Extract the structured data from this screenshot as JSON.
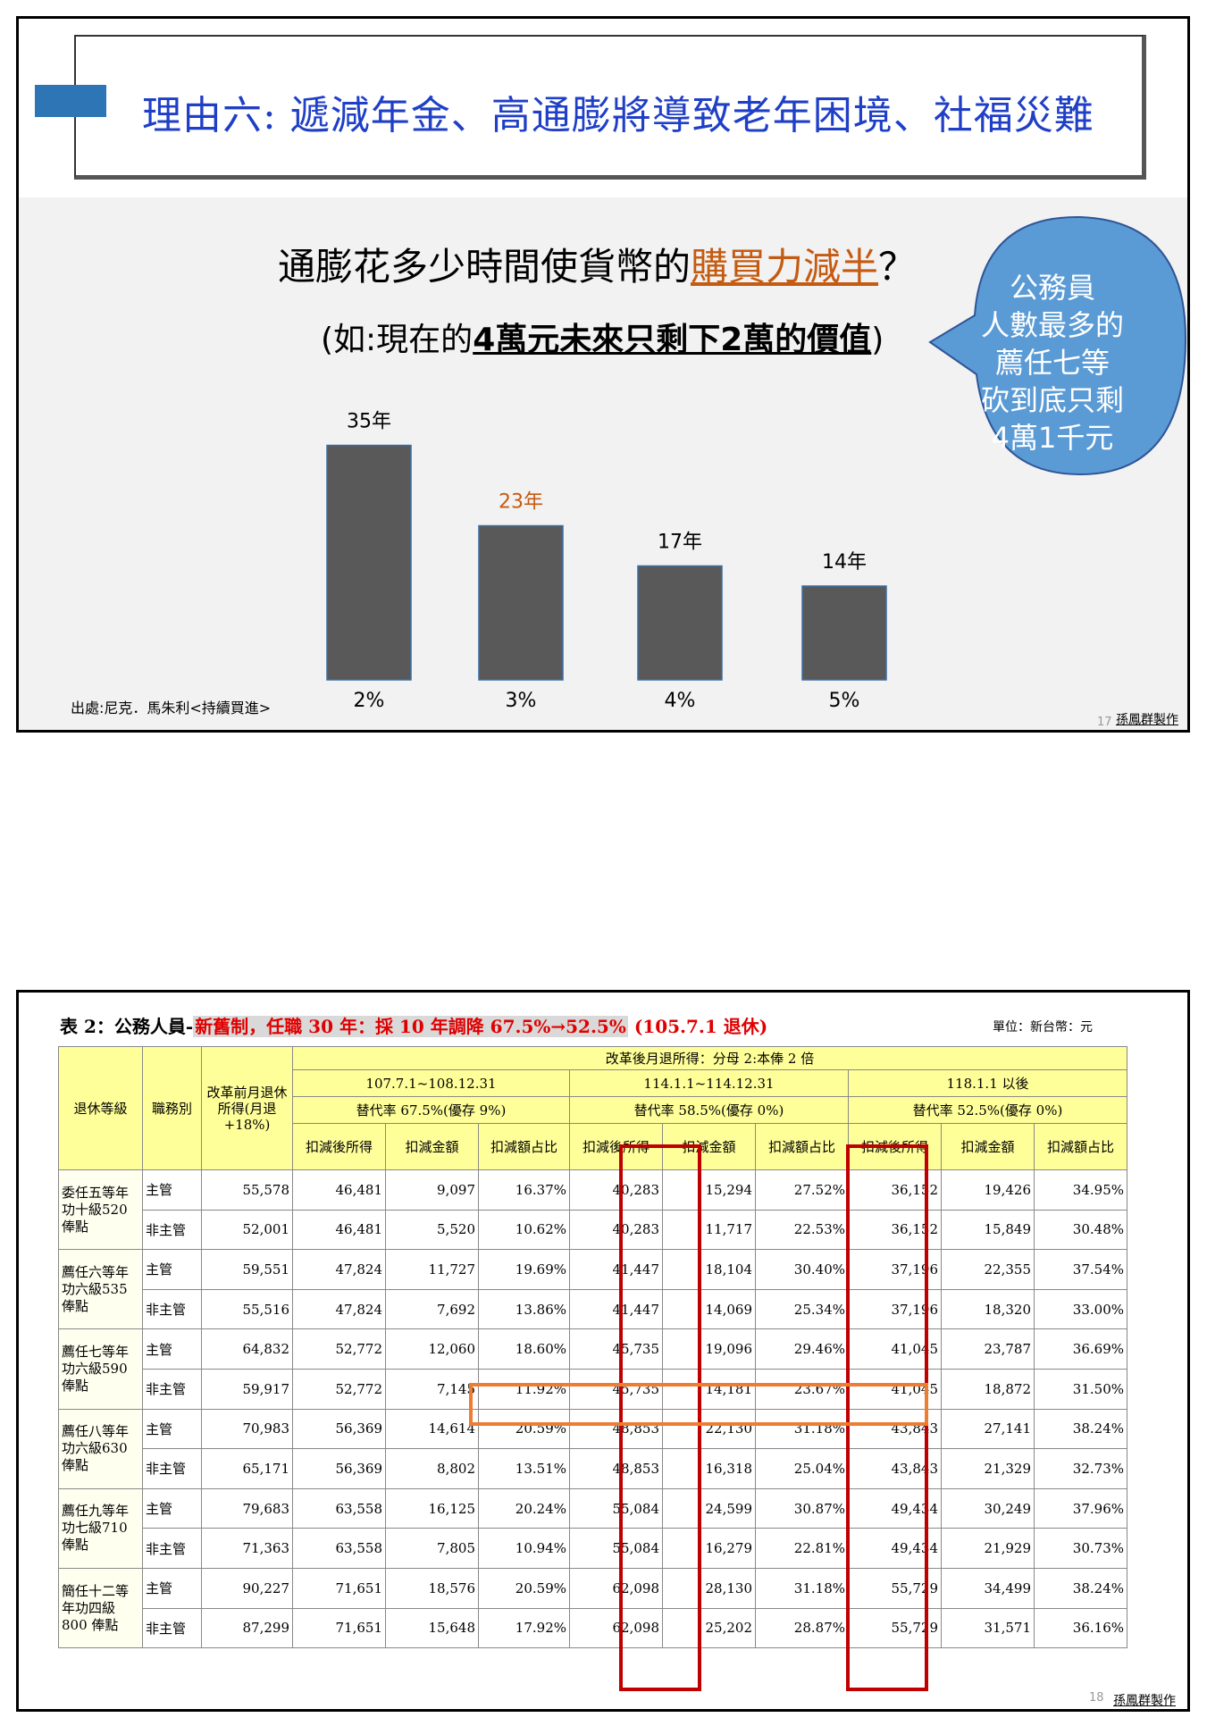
{
  "slide17": {
    "title": "理由六: 遞減年金、高通膨將導致老年困境、社福災難",
    "question_prefix": "通膨花多少時間使貨幣的",
    "question_highlight": "購買力減半",
    "question_suffix": "？",
    "subline_prefix": "(如:現在的",
    "subline_underlined": "4萬元未來只剩下2萬的價值",
    "subline_suffix": ")",
    "bubble_lines": [
      "公務員",
      "人數最多的",
      "薦任七等",
      "砍到底只剩",
      "4萬1千元"
    ],
    "source": "出處:尼克．馬朱利<持續買進>",
    "page_number": "17",
    "author": "孫鳳群製作",
    "colors": {
      "bar": "#595959",
      "highlight": "#c55a11",
      "title": "#1f3fc7",
      "bubble": "#5b9bd5"
    }
  },
  "chart_data": {
    "type": "bar",
    "categories": [
      "2%",
      "3%",
      "4%",
      "5%"
    ],
    "values": [
      35,
      23,
      17,
      14
    ],
    "data_labels": [
      "35年",
      "23年",
      "17年",
      "14年"
    ],
    "highlight_index": 1,
    "ylim": [
      0,
      40
    ]
  },
  "slide18": {
    "title_lead": "表 2：公務人員-",
    "title_red": "新舊制，任職 30 年：採 10 年調降 67.5%→52.5%",
    "title_tail": "(105.7.1 退休)",
    "unit": "單位：新台幣：元",
    "page_number": "18",
    "author": "孫鳳群製作",
    "headers": {
      "level": "退休等級",
      "role": "職務別",
      "pre": "改革前月退休所得(月退+18%)",
      "post": "改革後月退所得：分母 2:本俸 2 倍",
      "periods": [
        {
          "range": "107.7.1~108.12.31",
          "rate": "替代率 67.5%(優存 9%)"
        },
        {
          "range": "114.1.1~114.12.31",
          "rate": "替代率 58.5%(優存 0%)"
        },
        {
          "range": "118.1.1 以後",
          "rate": "替代率 52.5%(優存 0%)"
        }
      ],
      "sub": [
        "扣減後所得",
        "扣減金額",
        "扣減額占比"
      ]
    },
    "groups": [
      {
        "level": "委任五等年功十級520 俸點",
        "rows": [
          {
            "role": "主管",
            "pre": "55,578",
            "v": [
              "46,481",
              "9,097",
              "16.37%",
              "40,283",
              "15,294",
              "27.52%",
              "36,152",
              "19,426",
              "34.95%"
            ]
          },
          {
            "role": "非主管",
            "pre": "52,001",
            "v": [
              "46,481",
              "5,520",
              "10.62%",
              "40,283",
              "11,717",
              "22.53%",
              "36,152",
              "15,849",
              "30.48%"
            ]
          }
        ]
      },
      {
        "level": "薦任六等年功六級535 俸點",
        "rows": [
          {
            "role": "主管",
            "pre": "59,551",
            "v": [
              "47,824",
              "11,727",
              "19.69%",
              "41,447",
              "18,104",
              "30.40%",
              "37,196",
              "22,355",
              "37.54%"
            ]
          },
          {
            "role": "非主管",
            "pre": "55,516",
            "v": [
              "47,824",
              "7,692",
              "13.86%",
              "41,447",
              "14,069",
              "25.34%",
              "37,196",
              "18,320",
              "33.00%"
            ]
          }
        ]
      },
      {
        "level": "薦任七等年功六級590 俸點",
        "rows": [
          {
            "role": "主管",
            "pre": "64,832",
            "v": [
              "52,772",
              "12,060",
              "18.60%",
              "45,735",
              "19,096",
              "29.46%",
              "41,045",
              "23,787",
              "36.69%"
            ]
          },
          {
            "role": "非主管",
            "pre": "59,917",
            "v": [
              "52,772",
              "7,145",
              "11.92%",
              "45,735",
              "14,181",
              "23.67%",
              "41,045",
              "18,872",
              "31.50%"
            ]
          }
        ]
      },
      {
        "level": "薦任八等年功六級630 俸點",
        "rows": [
          {
            "role": "主管",
            "pre": "70,983",
            "v": [
              "56,369",
              "14,614",
              "20.59%",
              "48,853",
              "22,130",
              "31.18%",
              "43,843",
              "27,141",
              "38.24%"
            ]
          },
          {
            "role": "非主管",
            "pre": "65,171",
            "v": [
              "56,369",
              "8,802",
              "13.51%",
              "48,853",
              "16,318",
              "25.04%",
              "43,843",
              "21,329",
              "32.73%"
            ]
          }
        ]
      },
      {
        "level": "薦任九等年功七級710 俸點",
        "rows": [
          {
            "role": "主管",
            "pre": "79,683",
            "v": [
              "63,558",
              "16,125",
              "20.24%",
              "55,084",
              "24,599",
              "30.87%",
              "49,434",
              "30,249",
              "37.96%"
            ]
          },
          {
            "role": "非主管",
            "pre": "71,363",
            "v": [
              "63,558",
              "7,805",
              "10.94%",
              "55,084",
              "16,279",
              "22.81%",
              "49,434",
              "21,929",
              "30.73%"
            ]
          }
        ]
      },
      {
        "level": "簡任十二等年功四級800 俸點",
        "rows": [
          {
            "role": "主管",
            "pre": "90,227",
            "v": [
              "71,651",
              "18,576",
              "20.59%",
              "62,098",
              "28,130",
              "31.18%",
              "55,729",
              "34,499",
              "38.24%"
            ]
          },
          {
            "role": "非主管",
            "pre": "87,299",
            "v": [
              "71,651",
              "15,648",
              "17.92%",
              "62,098",
              "25,202",
              "28.87%",
              "55,729",
              "31,571",
              "36.16%"
            ]
          }
        ]
      }
    ]
  }
}
